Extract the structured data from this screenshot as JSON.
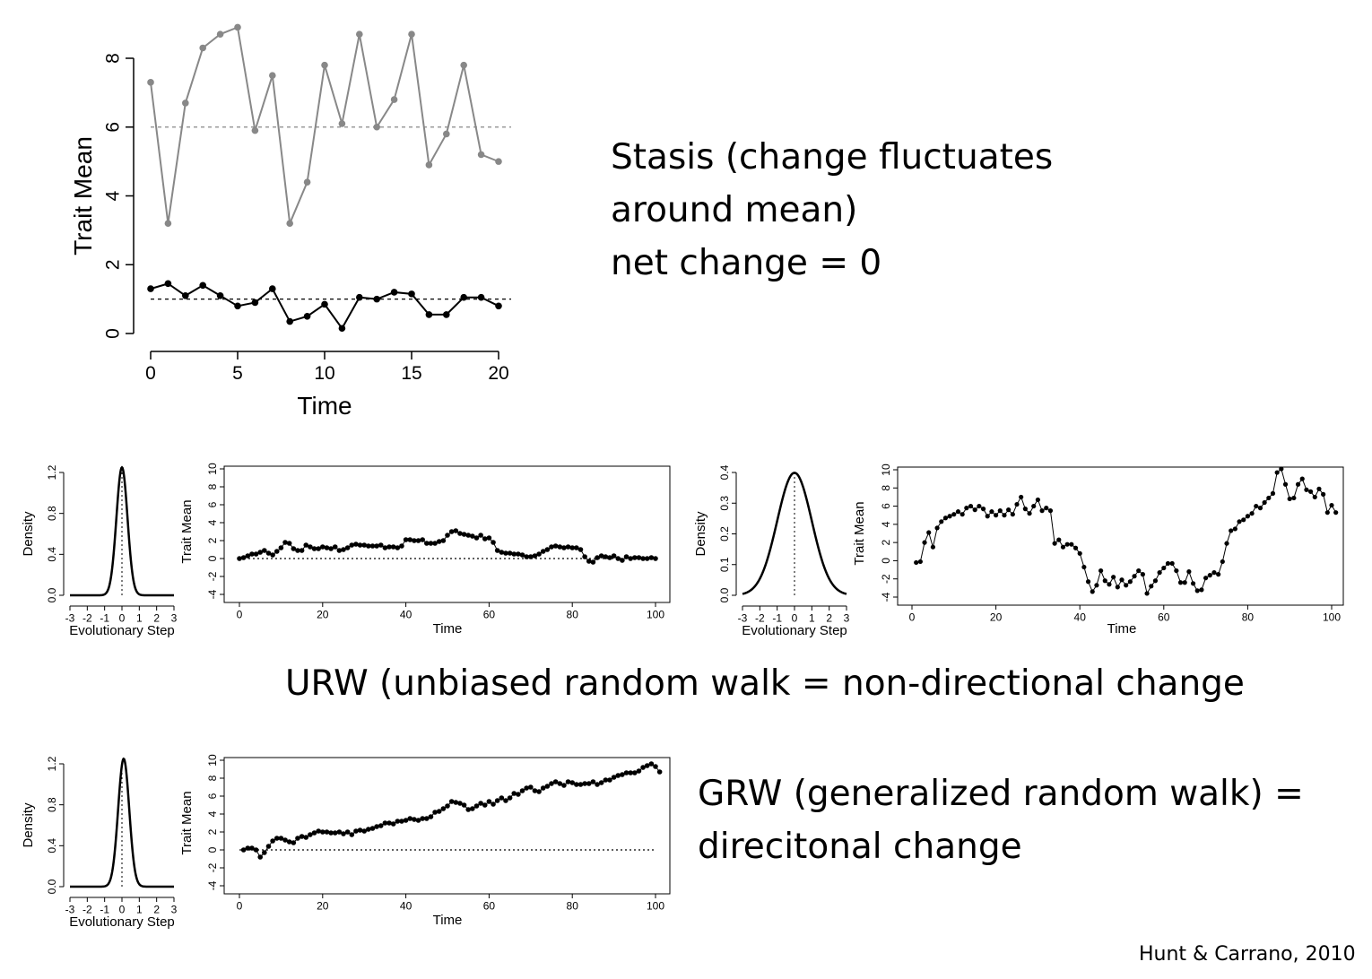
{
  "stasis_text": {
    "line1": "Stasis (change fluctuates",
    "line2": "around mean)",
    "line3": "net change = 0"
  },
  "urw_text": "URW (unbiased random walk = non-directional change",
  "grw_text": {
    "line1": "GRW (generalized random walk) =",
    "line2": "direcitonal change"
  },
  "citation": "Hunt & Carrano, 2010",
  "colors": {
    "gray_series": "#888888",
    "black_series": "#000000"
  },
  "chart_data": [
    {
      "id": "stasis",
      "type": "line",
      "title": "",
      "xlabel": "Time",
      "ylabel": "Trait Mean",
      "xlim": [
        0,
        20
      ],
      "ylim": [
        0,
        8
      ],
      "xticks": [
        "0",
        "5",
        "10",
        "15",
        "20"
      ],
      "yticks": [
        "0",
        "2",
        "4",
        "6",
        "8"
      ],
      "series": [
        {
          "color": "#888888",
          "x": [
            0,
            1,
            2,
            3,
            4,
            5,
            6,
            7,
            8,
            9,
            10,
            11,
            12,
            13,
            14,
            15,
            16,
            17,
            18,
            19,
            20
          ],
          "values": [
            7.3,
            3.2,
            6.7,
            8.3,
            8.7,
            8.9,
            5.9,
            7.5,
            3.2,
            4.4,
            7.8,
            6.1,
            8.7,
            6.0,
            6.8,
            8.7,
            4.9,
            5.8,
            7.8,
            5.2,
            5.0
          ]
        },
        {
          "color": "#000000",
          "x": [
            0,
            1,
            2,
            3,
            4,
            5,
            6,
            7,
            8,
            9,
            10,
            11,
            12,
            13,
            14,
            15,
            16,
            17,
            18,
            19,
            20
          ],
          "values": [
            1.3,
            1.45,
            1.1,
            1.4,
            1.1,
            0.8,
            0.9,
            1.3,
            0.35,
            0.5,
            0.85,
            0.15,
            1.05,
            1.0,
            1.2,
            1.15,
            0.55,
            0.55,
            1.05,
            1.05,
            0.8
          ]
        }
      ],
      "reference_lines": [
        {
          "y": 6,
          "color": "#888888"
        },
        {
          "y": 1,
          "color": "#000000"
        }
      ]
    },
    {
      "id": "urw-narrow-density",
      "type": "line",
      "title": "",
      "xlabel": "Evolutionary Step",
      "ylabel": "Density",
      "xlim": [
        -3,
        3
      ],
      "ylim": [
        0,
        1.2
      ],
      "xticks": [
        "-3",
        "-2",
        "-1",
        "0",
        "1",
        "2",
        "3"
      ],
      "yticks": [
        "0.0",
        "0.4",
        "0.8",
        "1.2"
      ],
      "distribution": {
        "mean": 0,
        "sd": 0.32,
        "peak": 1.25
      }
    },
    {
      "id": "urw-small-walk",
      "type": "scatter",
      "title": "",
      "xlabel": "Time",
      "ylabel": "Trait Mean",
      "xlim": [
        0,
        100
      ],
      "ylim": [
        -4,
        10
      ],
      "xticks": [
        "0",
        "20",
        "40",
        "60",
        "80",
        "100"
      ],
      "yticks": [
        "-4",
        "-2",
        "0",
        "2",
        "4",
        "6",
        "8",
        "10"
      ],
      "x_start": 0,
      "x_step": 1,
      "values": [
        0,
        0.1,
        0.3,
        0.5,
        0.5,
        0.7,
        0.9,
        0.6,
        0.4,
        0.8,
        1.2,
        1.8,
        1.7,
        1.1,
        0.9,
        0.9,
        1.5,
        1.3,
        1.1,
        1.1,
        1.3,
        1.2,
        1.1,
        1.3,
        0.9,
        1.0,
        1.2,
        1.5,
        1.6,
        1.5,
        1.5,
        1.4,
        1.4,
        1.4,
        1.5,
        1.2,
        1.3,
        1.3,
        1.2,
        1.4,
        2.1,
        2.1,
        2.0,
        2.0,
        2.1,
        1.7,
        1.7,
        1.7,
        1.9,
        2.0,
        2.6,
        3.0,
        3.1,
        2.8,
        2.7,
        2.6,
        2.5,
        2.3,
        2.6,
        2.2,
        2.3,
        1.8,
        0.9,
        0.7,
        0.6,
        0.6,
        0.5,
        0.5,
        0.4,
        0.2,
        0.2,
        0.3,
        0.5,
        0.8,
        1.0,
        1.3,
        1.4,
        1.3,
        1.2,
        1.3,
        1.2,
        1.2,
        1.0,
        0.2,
        -0.3,
        -0.4,
        0.1,
        0.3,
        0.2,
        0.1,
        0.3,
        0.0,
        -0.2,
        0.2,
        0.0,
        0.1,
        0.1,
        0.0,
        0.0,
        0.1,
        0.0
      ],
      "reference_lines": [
        {
          "y": 0
        }
      ]
    },
    {
      "id": "urw-wide-density",
      "type": "line",
      "title": "",
      "xlabel": "Evolutionary Step",
      "ylabel": "Density",
      "xlim": [
        -3,
        3
      ],
      "ylim": [
        0,
        0.4
      ],
      "xticks": [
        "-3",
        "-2",
        "-1",
        "0",
        "1",
        "2",
        "3"
      ],
      "yticks": [
        "0.0",
        "0.1",
        "0.2",
        "0.3",
        "0.4"
      ],
      "distribution": {
        "mean": 0,
        "sd": 1,
        "peak": 0.3989
      }
    },
    {
      "id": "urw-large-walk",
      "type": "line",
      "title": "",
      "xlabel": "Time",
      "ylabel": "Trait Mean",
      "xlim": [
        0,
        100
      ],
      "ylim": [
        -4,
        10
      ],
      "xticks": [
        "0",
        "20",
        "40",
        "60",
        "80",
        "100"
      ],
      "yticks": [
        "-4",
        "-2",
        "0",
        "2",
        "4",
        "6",
        "8",
        "10"
      ],
      "x_start": 1,
      "x_step": 1,
      "values": [
        -0.2,
        -0.1,
        2.0,
        3.1,
        1.5,
        3.6,
        4.3,
        4.7,
        4.9,
        5.1,
        5.4,
        5.1,
        5.8,
        6.0,
        5.6,
        6.0,
        5.7,
        4.9,
        5.4,
        5.0,
        5.5,
        5.0,
        5.6,
        5.1,
        6.2,
        7.0,
        5.7,
        5.2,
        6.0,
        6.7,
        5.5,
        5.8,
        5.5,
        1.9,
        2.3,
        1.5,
        1.8,
        1.8,
        1.4,
        0.8,
        -0.7,
        -2.3,
        -3.4,
        -2.7,
        -1.1,
        -2.2,
        -2.6,
        -1.8,
        -2.9,
        -2.1,
        -2.7,
        -2.3,
        -1.7,
        -1.1,
        -1.5,
        -3.6,
        -2.8,
        -2.2,
        -1.3,
        -0.8,
        -0.3,
        -0.3,
        -1.1,
        -2.4,
        -2.4,
        -1.2,
        -2.5,
        -3.3,
        -3.2,
        -1.9,
        -1.6,
        -1.3,
        -1.5,
        -0.1,
        1.9,
        3.3,
        3.5,
        4.3,
        4.5,
        4.9,
        5.2,
        6.0,
        5.8,
        6.4,
        6.9,
        7.4,
        9.7,
        10.1,
        8.4,
        6.8,
        6.9,
        8.4,
        9.0,
        7.8,
        7.6,
        7.0,
        7.9,
        7.3,
        5.3,
        6.1,
        5.3
      ]
    },
    {
      "id": "grw-density",
      "type": "line",
      "title": "",
      "xlabel": "Evolutionary Step",
      "ylabel": "Density",
      "xlim": [
        -3,
        3
      ],
      "ylim": [
        0,
        1.2
      ],
      "xticks": [
        "-3",
        "-2",
        "-1",
        "0",
        "1",
        "2",
        "3"
      ],
      "yticks": [
        "0.0",
        "0.4",
        "0.8",
        "1.2"
      ],
      "distribution": {
        "mean": 0.1,
        "sd": 0.32,
        "peak": 1.25
      }
    },
    {
      "id": "grw-walk",
      "type": "scatter",
      "title": "",
      "xlabel": "Time",
      "ylabel": "Trait Mean",
      "xlim": [
        0,
        100
      ],
      "ylim": [
        -4,
        10
      ],
      "xticks": [
        "0",
        "20",
        "40",
        "60",
        "80",
        "100"
      ],
      "yticks": [
        "-4",
        "-2",
        "0",
        "2",
        "4",
        "6",
        "8",
        "10"
      ],
      "x_start": 1,
      "x_step": 1,
      "values": [
        0,
        0.2,
        0.2,
        0,
        -0.8,
        -0.3,
        0.4,
        1.0,
        1.3,
        1.3,
        1.1,
        0.9,
        0.8,
        1.3,
        1.5,
        1.4,
        1.7,
        1.9,
        2.1,
        2.0,
        2.0,
        1.9,
        1.9,
        2.0,
        1.8,
        2.0,
        1.7,
        2.1,
        2.2,
        2.1,
        2.3,
        2.4,
        2.6,
        2.7,
        3.0,
        3.0,
        2.9,
        3.2,
        3.2,
        3.3,
        3.5,
        3.4,
        3.3,
        3.5,
        3.5,
        3.7,
        4.2,
        4.3,
        4.6,
        4.9,
        5.4,
        5.3,
        5.2,
        5.0,
        4.5,
        4.6,
        4.9,
        5.2,
        5.0,
        5.4,
        5.1,
        5.5,
        5.8,
        5.5,
        5.8,
        6.3,
        6.2,
        6.6,
        6.9,
        7.0,
        6.6,
        6.5,
        6.9,
        7.1,
        7.4,
        7.6,
        7.4,
        7.2,
        7.6,
        7.5,
        7.3,
        7.3,
        7.4,
        7.4,
        7.6,
        7.3,
        7.5,
        7.8,
        7.8,
        8.1,
        8.3,
        8.4,
        8.6,
        8.6,
        8.6,
        8.8,
        9.2,
        9.4,
        9.6,
        9.3,
        8.7
      ],
      "reference_lines": [
        {
          "y": 0
        }
      ]
    }
  ]
}
